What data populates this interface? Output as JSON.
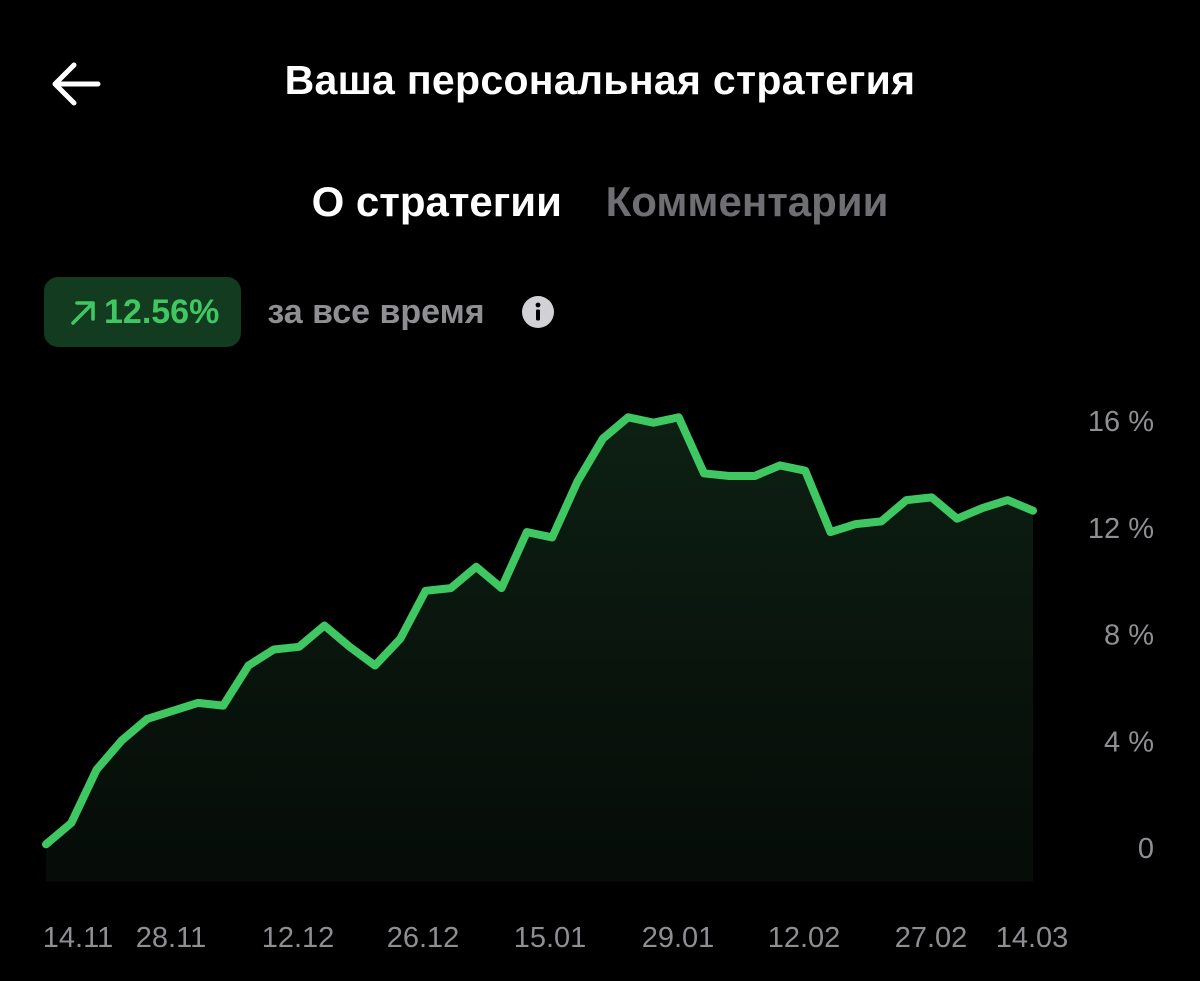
{
  "header": {
    "title": "Ваша персональная стратегия",
    "back_icon": "arrow-left-icon"
  },
  "tabs": [
    {
      "label": "О стратегии",
      "active": true
    },
    {
      "label": "Комментарии",
      "active": false
    }
  ],
  "summary": {
    "return_value": "12.56%",
    "return_icon": "arrow-up-right-icon",
    "period_label": "за все время",
    "info_icon": "info-icon"
  },
  "colors": {
    "background": "#000000",
    "accent_green": "#3fc862",
    "badge_background": "#123b1f",
    "muted_text": "#8e8e93"
  },
  "chart_data": {
    "type": "area",
    "y_tick_labels": [
      "16 %",
      "12 %",
      "8 %",
      "4 %",
      "0"
    ],
    "y_tick_values": [
      16,
      12,
      8,
      4,
      0
    ],
    "x_tick_labels": [
      "14.11",
      "28.11",
      "12.12",
      "26.12",
      "15.01",
      "29.01",
      "12.02",
      "27.02",
      "14.03"
    ],
    "ylim": [
      -1.3,
      16
    ],
    "grid": false,
    "series": [
      {
        "values": [
          0.1,
          0.9,
          2.9,
          4.0,
          4.8,
          5.1,
          5.4,
          5.3,
          6.8,
          7.4,
          7.5,
          8.3,
          7.5,
          6.8,
          7.8,
          9.6,
          9.7,
          10.5,
          9.7,
          11.8,
          11.6,
          13.7,
          15.3,
          16.1,
          15.9,
          16.1,
          14.0,
          13.9,
          13.9,
          14.3,
          14.1,
          11.8,
          12.1,
          12.2,
          13.0,
          13.1,
          12.3,
          12.7,
          13.0,
          12.6
        ]
      }
    ]
  }
}
